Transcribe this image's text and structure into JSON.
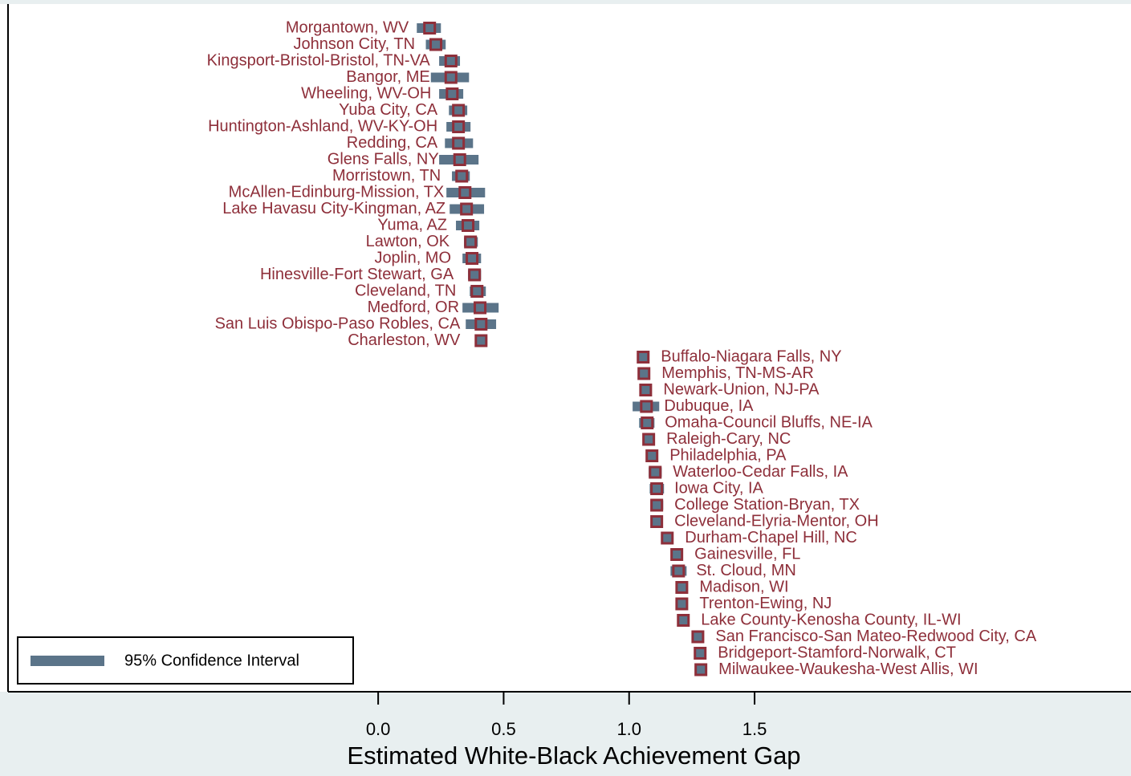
{
  "chart_data": {
    "type": "dot-ci",
    "x_label": "Estimated White-Black Achievement Gap",
    "xlim": [
      -1.475,
      3.0
    ],
    "xticks": [
      {
        "value": 0,
        "label": "0.0"
      },
      0.5,
      {
        "value": 1,
        "label": "1.0"
      },
      1.5
    ],
    "color": "#8e2f3a",
    "categories": [
      "Morgantown, WV",
      "Johnson City, TN",
      "Kingsport-Bristol-Bristol, TN-VA",
      "Bangor, ME",
      "Wheeling, WV-OH",
      "Yuba City, CA",
      "Huntington-Ashland, WV-KY-OH",
      "Redding, CA",
      "Glens Falls, NY",
      "Morristown, TN",
      "McAllen-Edinburg-Mission, TX",
      "Lake Havasu City-Kingman, AZ",
      "Yuma, AZ",
      "Lawton, OK",
      "Joplin, MO",
      "Hinesville-Fort Stewart, GA",
      "Cleveland, TN",
      "Medford, OR",
      "San Luis Obispo-Paso Robles, CA",
      "Charleston, WV",
      "Buffalo-Niagara Falls, NY",
      "Memphis, TN-MS-AR",
      "Newark-Union, NJ-PA",
      "Dubuque, IA",
      "Omaha-Council Bluffs, NE-IA",
      "Raleigh-Cary, NC",
      "Philadelphia, PA",
      "Waterloo-Cedar Falls, IA",
      "Iowa City, IA",
      "College Station-Bryan, TX",
      "Cleveland-Elyria-Mentor, OH",
      "Durham-Chapel Hill, NC",
      "Gainesville, FL",
      "St. Cloud, MN",
      "Madison, WI",
      "Trenton-Ewing, NJ",
      "Lake County-Kenosha County, IL-WI",
      "San Francisco-San Mateo-Redwood City, CA",
      "Bridgeport-Stamford-Norwalk, CT",
      "Milwaukee-Waukesha-West Allis, WI"
    ],
    "values": [
      0.205,
      0.23,
      0.29,
      0.29,
      0.295,
      0.32,
      0.32,
      0.32,
      0.325,
      0.333,
      0.346,
      0.352,
      0.358,
      0.368,
      0.374,
      0.384,
      0.394,
      0.406,
      0.41,
      0.41,
      1.056,
      1.059,
      1.066,
      1.069,
      1.072,
      1.078,
      1.091,
      1.104,
      1.11,
      1.11,
      1.11,
      1.152,
      1.19,
      1.197,
      1.21,
      1.21,
      1.216,
      1.274,
      1.283,
      1.286
    ],
    "ci": {
      "name": "95% Confidence Interval",
      "color": "#5b7489",
      "low": [
        0.154,
        0.19,
        0.243,
        0.21,
        0.243,
        0.282,
        0.272,
        0.266,
        0.243,
        0.294,
        0.272,
        0.285,
        0.31,
        0.342,
        0.336,
        0.358,
        0.365,
        0.336,
        0.349,
        0.387,
        1.034,
        1.037,
        1.043,
        1.014,
        1.04,
        1.056,
        1.072,
        1.078,
        1.082,
        1.085,
        1.091,
        1.133,
        1.168,
        1.165,
        1.19,
        1.187,
        1.194,
        1.255,
        1.264,
        1.267
      ],
      "high": [
        0.25,
        0.269,
        0.326,
        0.362,
        0.339,
        0.355,
        0.368,
        0.378,
        0.4,
        0.365,
        0.426,
        0.422,
        0.403,
        0.397,
        0.41,
        0.41,
        0.429,
        0.48,
        0.47,
        0.435,
        1.078,
        1.082,
        1.088,
        1.12,
        1.101,
        1.101,
        1.11,
        1.13,
        1.139,
        1.136,
        1.133,
        1.174,
        1.213,
        1.229,
        1.229,
        1.232,
        1.238,
        1.293,
        1.302,
        1.306
      ]
    }
  }
}
